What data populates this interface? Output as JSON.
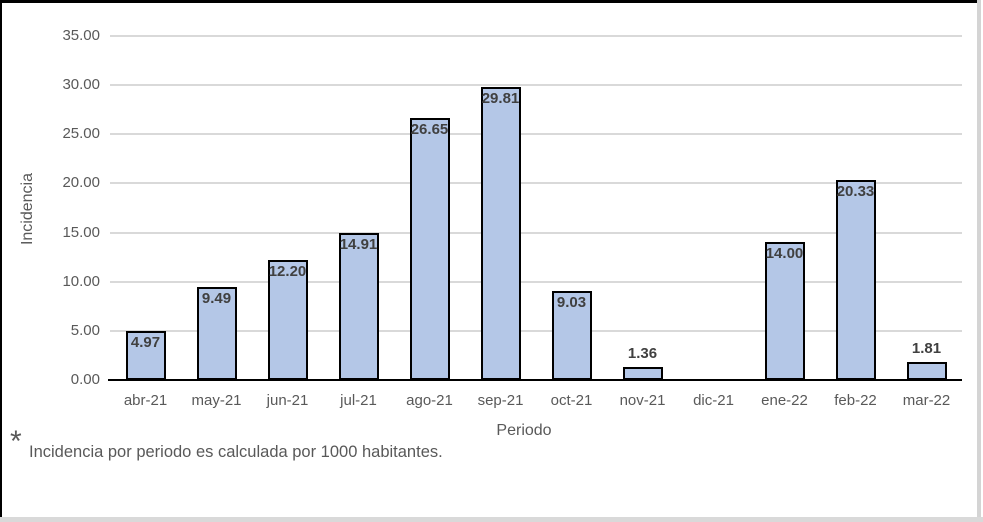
{
  "chart_data": {
    "type": "bar",
    "title": "",
    "categories": [
      "abr-21",
      "may-21",
      "jun-21",
      "jul-21",
      "ago-21",
      "sep-21",
      "oct-21",
      "nov-21",
      "dic-21",
      "ene-22",
      "feb-22",
      "mar-22"
    ],
    "values": [
      4.97,
      9.49,
      12.2,
      14.91,
      26.65,
      29.81,
      9.03,
      1.36,
      0,
      14.0,
      20.33,
      1.81
    ],
    "value_labels": [
      "4.97",
      "9.49",
      "12.20",
      "14.91",
      "26.65",
      "29.81",
      "9.03",
      "1.36",
      "",
      "14.00",
      "20.33",
      "1.81"
    ],
    "xlabel": "Periodo",
    "ylabel": "Incidencia",
    "ylim": [
      0,
      35
    ],
    "ytick_step": 5,
    "ytick_labels": [
      "35.00",
      "30.00",
      "25.00",
      "20.00",
      "15.00",
      "10.00",
      "5.00",
      "0.00"
    ],
    "ytick_values": [
      35,
      30,
      25,
      20,
      15,
      10,
      5,
      0
    ],
    "grid": true,
    "legend": "none",
    "colors": {
      "bar_fill": "#b4c7e7",
      "bar_border": "#000000",
      "gridline": "#d9d9d9",
      "axis_line": "#000000",
      "axis_text": "#595959",
      "data_label": "#404040"
    }
  },
  "footnote": {
    "asterisk": "*",
    "text": "Incidencia por periodo es calculada por 1000 habitantes."
  }
}
